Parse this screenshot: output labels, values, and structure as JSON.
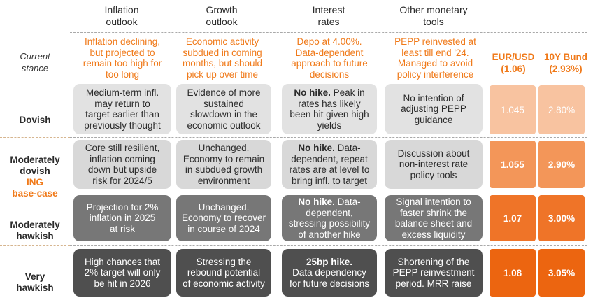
{
  "headers": {
    "inflation": "Inflation\noutlook",
    "growth": "Growth\noutlook",
    "rates": "Interest\nrates",
    "tools": "Other monetary\ntools"
  },
  "current": {
    "label": "Current\nstance",
    "inflation": "Inflation declining,\nbut projected to\nremain too high for\ntoo long",
    "growth": "Economic activity\nsubdued in coming\nmonths, but should\npick up over time",
    "rates": "Depo at 4.00%.\nData-dependent\napproach to future\ndecisions",
    "tools": "PEPP reinvested at\nleast till end '24.\nManaged to avoid\npolicy interference",
    "eurusd": "EUR/USD\n(1.06)",
    "bund": "10Y Bund\n(2.93%)"
  },
  "rows": [
    {
      "label": "Dovish",
      "sub": "",
      "inflation": "Medium-term infl.\nmay return to\ntarget earlier than\npreviously thought",
      "growth": "Evidence of more\nsustained\nslowdown in the\neconomic outlook",
      "rates_bold": "No hike.",
      "rates": " Peak in\nrates has likely\nbeen hit given high\nyields",
      "tools": "No intention of\nadjusting PEPP\nguidance",
      "eurusd": "1.045",
      "bund": "2.80%"
    },
    {
      "label": "Moderately\ndovish",
      "sub": "ING\nbase-case",
      "inflation": "Core still resilient,\ninflation coming\ndown but upside\nrisk for 2024/5",
      "growth": "Unchanged.\nEconomy to remain\nin subdued growth\nenvironment",
      "rates_bold": "No hike.",
      "rates": " Data-\ndependent, repeat\nrates are at level to\nbring infl. to target",
      "tools": "Discussion about\nnon-interest rate\npolicy tools",
      "eurusd": "1.055",
      "bund": "2.90%"
    },
    {
      "label": "Moderately\nhawkish",
      "sub": "",
      "inflation": "Projection for 2%\ninflation in 2025\nat risk",
      "growth": "Unchanged.\nEconomy to recover\nin course of 2024",
      "rates_bold": "No hike.",
      "rates": " Data-\ndependent,\nstressing possibility\nof another hike",
      "tools": "Signal intention to\nfaster shrink the\nbalance sheet and\nexcess liquidity",
      "eurusd": "1.07",
      "bund": "3.00%"
    },
    {
      "label": "Very\nhawkish",
      "sub": "",
      "inflation": "High chances that\n2% target will only\nbe hit in 2026",
      "growth": "Stressing the\nrebound potential\nof economic activity",
      "rates_bold": "25bp hike.",
      "rates": "\nData dependency\nfor future decisions",
      "tools": "Shortening of the\nPEPP reinvestment\nperiod. MRR raise",
      "eurusd": "1.08",
      "bund": "3.05%"
    }
  ],
  "colors": {
    "accent_orange": "#f07a1a",
    "fx_dovish": "#f8c3a0",
    "fx_mod_dovish": "#f39659",
    "fx_mod_hawkish": "#ef7428",
    "fx_very_hawkish": "#ec6510"
  }
}
